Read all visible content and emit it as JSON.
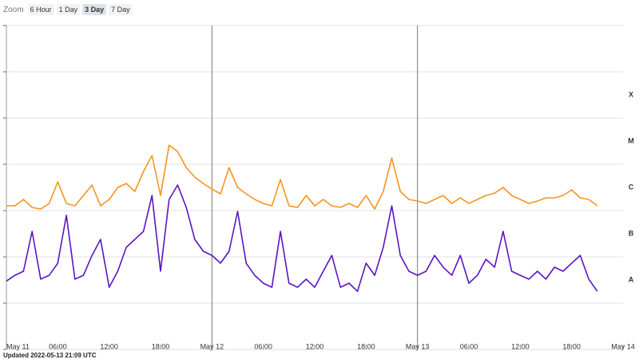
{
  "chart_data": {
    "type": "line",
    "zoom_label": "Zoom",
    "zoom_options": [
      "6 Hour",
      "1 Day",
      "3 Day",
      "7 Day"
    ],
    "zoom_selected": 2,
    "updated": "Updated 2022-05-13 21:09 UTC",
    "log_y": true,
    "ylim": [
      1e-09,
      0.01
    ],
    "yticks": [
      1e-09,
      1e-08,
      1e-07,
      1e-06,
      1e-05,
      0.0001,
      0.001,
      0.01
    ],
    "class_labels": [
      "A",
      "B",
      "C",
      "M",
      "X"
    ],
    "xlim": [
      0,
      72
    ],
    "xticks": [
      {
        "value": 0,
        "label": "May 11"
      },
      {
        "value": 6,
        "label": "06:00"
      },
      {
        "value": 12,
        "label": "12:00"
      },
      {
        "value": 18,
        "label": "18:00"
      },
      {
        "value": 24,
        "label": "May 12"
      },
      {
        "value": 30,
        "label": "06:00"
      },
      {
        "value": 36,
        "label": "12:00"
      },
      {
        "value": 42,
        "label": "18:00"
      },
      {
        "value": 48,
        "label": "May 13"
      },
      {
        "value": 54,
        "label": "06:00"
      },
      {
        "value": 60,
        "label": "12:00"
      },
      {
        "value": 66,
        "label": "18:00"
      },
      {
        "value": 72,
        "label": "May 14"
      }
    ],
    "day_lines": [
      24,
      48
    ],
    "x": [
      0,
      1,
      2,
      3,
      4,
      5,
      6,
      7,
      8,
      9,
      10,
      11,
      12,
      13,
      14,
      15,
      16,
      17,
      18,
      19,
      20,
      21,
      22,
      23,
      24,
      25,
      26,
      27,
      28,
      29,
      30,
      31,
      32,
      33,
      34,
      35,
      36,
      37,
      38,
      39,
      40,
      41,
      42,
      43,
      44,
      45,
      46,
      47,
      48,
      49,
      50,
      51,
      52,
      53,
      54,
      55,
      56,
      57,
      58,
      59,
      60,
      61,
      62,
      63,
      64,
      65,
      66,
      67,
      68,
      69
    ],
    "series": [
      {
        "color": "#f7941d",
        "values": [
          1.27e-06,
          1.27e-06,
          1.74e-06,
          1.17e-06,
          1.08e-06,
          1.43e-06,
          4.2e-06,
          1.43e-06,
          1.27e-06,
          2.13e-06,
          3.56e-06,
          1.27e-06,
          1.74e-06,
          3.16e-06,
          3.86e-06,
          2.59e-06,
          7e-06,
          1.55e-05,
          2.13e-06,
          2.59e-05,
          1.89e-05,
          8.5e-06,
          5.3e-06,
          3.86e-06,
          2.92e-06,
          2.3e-06,
          8.5e-06,
          3.16e-06,
          2.3e-06,
          1.74e-06,
          1.43e-06,
          1.27e-06,
          4.7e-06,
          1.27e-06,
          1.17e-06,
          2.13e-06,
          1.27e-06,
          1.74e-06,
          1.27e-06,
          1.17e-06,
          1.43e-06,
          1.17e-06,
          2.13e-06,
          1.08e-06,
          2.59e-06,
          1.37e-05,
          2.59e-06,
          1.74e-06,
          1.61e-06,
          1.43e-06,
          1.74e-06,
          2.13e-06,
          1.43e-06,
          1.89e-06,
          1.43e-06,
          1.74e-06,
          2.13e-06,
          2.39e-06,
          3.16e-06,
          2.13e-06,
          1.74e-06,
          1.43e-06,
          1.61e-06,
          1.89e-06,
          1.89e-06,
          2.13e-06,
          2.81e-06,
          1.89e-06,
          1.74e-06,
          1.27e-06
        ]
      },
      {
        "color": "#5b14c4",
        "values": [
          3e-08,
          4e-08,
          4.9e-08,
          3.56e-07,
          3.3e-08,
          4e-08,
          7.3e-08,
          7.9e-07,
          3.3e-08,
          4e-08,
          1.08e-07,
          2.39e-07,
          2.2e-08,
          4.9e-08,
          1.61e-07,
          2.39e-07,
          3.56e-07,
          2.13e-06,
          4.9e-08,
          1.74e-06,
          3.57e-06,
          1.17e-06,
          2.39e-07,
          1.32e-07,
          1.08e-07,
          7.3e-08,
          1.32e-07,
          9.6e-07,
          7.3e-08,
          4e-08,
          2.7e-08,
          2.2e-08,
          3.56e-07,
          2.7e-08,
          2.2e-08,
          3.3e-08,
          2.2e-08,
          4.9e-08,
          1.08e-07,
          2.2e-08,
          2.7e-08,
          1.8e-08,
          7.3e-08,
          4e-08,
          1.61e-07,
          1.27e-06,
          1.08e-07,
          4.9e-08,
          4e-08,
          4.9e-08,
          1.08e-07,
          6e-08,
          4e-08,
          1.08e-07,
          2.7e-08,
          4e-08,
          8.9e-08,
          6e-08,
          3.56e-07,
          4.9e-08,
          4e-08,
          3.3e-08,
          4.9e-08,
          3.3e-08,
          6e-08,
          4.9e-08,
          7.3e-08,
          1.08e-07,
          3.3e-08,
          1.8e-08
        ]
      }
    ]
  }
}
